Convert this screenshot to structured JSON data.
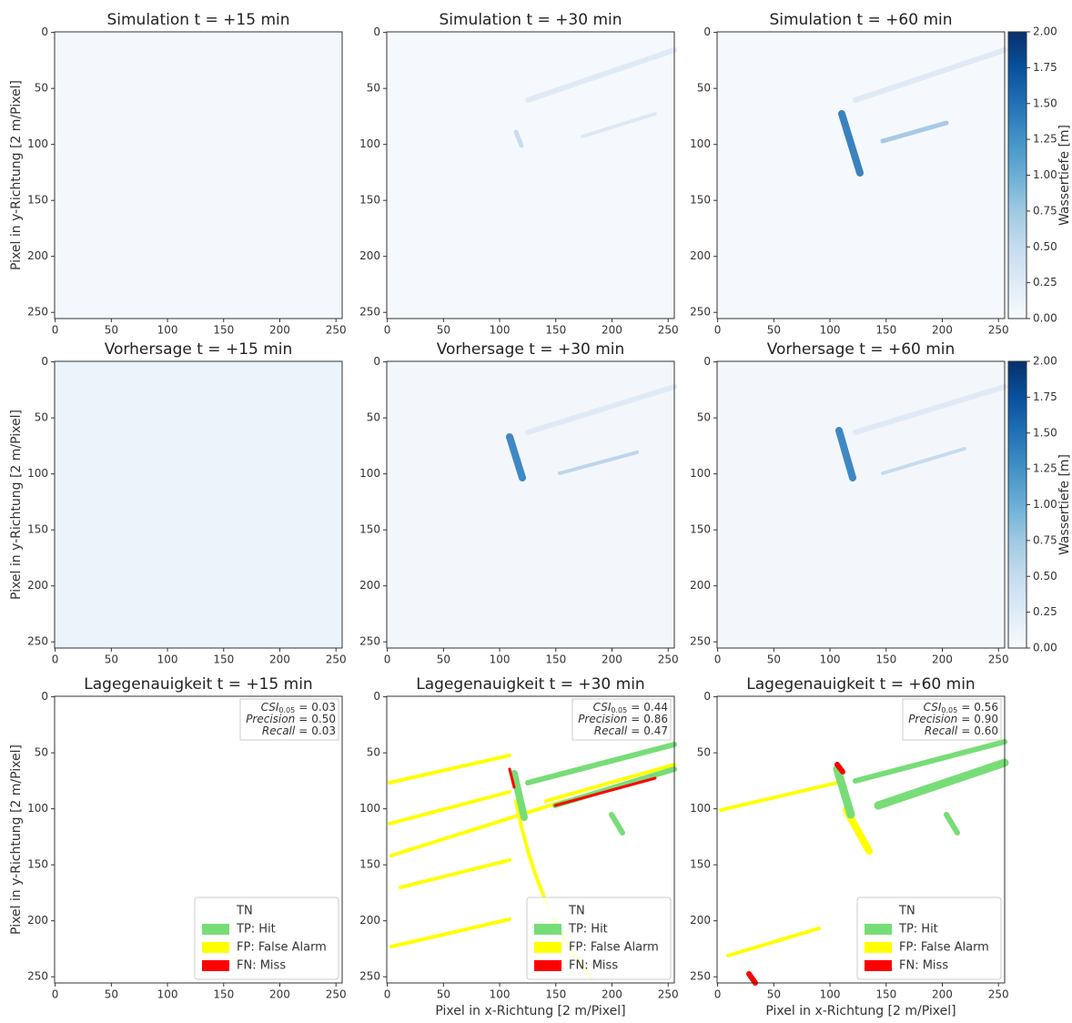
{
  "chart_data": [
    {
      "type": "heatmap",
      "title": "Simulation t = +15 min",
      "ylabel": "Pixel in y-Richtung [2 m/Pixel]",
      "xlim": [
        -0.5,
        255.5
      ],
      "ylim": [
        255.5,
        -0.5
      ],
      "xticks": [
        0,
        50,
        100,
        150,
        200,
        250
      ],
      "yticks": [
        0,
        50,
        100,
        150,
        200,
        250
      ]
    },
    {
      "type": "heatmap",
      "title": "Simulation t = +30 min",
      "xlim": [
        -0.5,
        255.5
      ],
      "ylim": [
        255.5,
        -0.5
      ],
      "xticks": [
        0,
        50,
        100,
        150,
        200,
        250
      ],
      "yticks": [
        0,
        50,
        100,
        150,
        200,
        250
      ]
    },
    {
      "type": "heatmap",
      "title": "Simulation t = +60 min",
      "xlim": [
        -0.5,
        255.5
      ],
      "ylim": [
        255.5,
        -0.5
      ],
      "xticks": [
        0,
        50,
        100,
        150,
        200,
        250
      ],
      "yticks": [
        0,
        50,
        100,
        150,
        200,
        250
      ]
    },
    {
      "type": "heatmap",
      "title": "Vorhersage t = +15 min",
      "ylabel": "Pixel in y-Richtung [2 m/Pixel]",
      "xlim": [
        -0.5,
        255.5
      ],
      "ylim": [
        255.5,
        -0.5
      ],
      "xticks": [
        0,
        50,
        100,
        150,
        200,
        250
      ],
      "yticks": [
        0,
        50,
        100,
        150,
        200,
        250
      ]
    },
    {
      "type": "heatmap",
      "title": "Vorhersage t = +30 min",
      "xlim": [
        -0.5,
        255.5
      ],
      "ylim": [
        255.5,
        -0.5
      ],
      "xticks": [
        0,
        50,
        100,
        150,
        200,
        250
      ],
      "yticks": [
        0,
        50,
        100,
        150,
        200,
        250
      ]
    },
    {
      "type": "heatmap",
      "title": "Vorhersage t = +60 min",
      "xlim": [
        -0.5,
        255.5
      ],
      "ylim": [
        255.5,
        -0.5
      ],
      "xticks": [
        0,
        50,
        100,
        150,
        200,
        250
      ],
      "yticks": [
        0,
        50,
        100,
        150,
        200,
        250
      ]
    },
    {
      "type": "classification",
      "title": "Lagegenauigkeit t = +15 min",
      "ylabel": "Pixel in y-Richtung [2 m/Pixel]",
      "xlim": [
        -0.5,
        255.5
      ],
      "ylim": [
        255.5,
        -0.5
      ],
      "xticks": [
        0,
        50,
        100,
        150,
        200,
        250
      ],
      "yticks": [
        0,
        50,
        100,
        150,
        200,
        250
      ],
      "metric_separator": "=",
      "metrics": [
        {
          "name": "CSI",
          "subscript": "0.05",
          "value": 0.03,
          "value_label": "0.03"
        },
        {
          "name": "Precision",
          "value": 0.5,
          "value_label": "0.50"
        },
        {
          "name": "Recall",
          "value": 0.03,
          "value_label": "0.03"
        }
      ],
      "legend_corner": "lower right",
      "legend": [
        {
          "name": "TN",
          "color": "#ffffff"
        },
        {
          "name": "TP: Hit",
          "color": "#77dd77"
        },
        {
          "name": "FP: False Alarm",
          "color": "#ffff00"
        },
        {
          "name": "FN: Miss",
          "color": "#ff0000"
        }
      ]
    },
    {
      "type": "classification",
      "title": "Lagegenauigkeit t = +30 min",
      "xlabel": "Pixel in x-Richtung [2 m/Pixel]",
      "xlim": [
        -0.5,
        255.5
      ],
      "ylim": [
        255.5,
        -0.5
      ],
      "xticks": [
        0,
        50,
        100,
        150,
        200,
        250
      ],
      "yticks": [
        0,
        50,
        100,
        150,
        200,
        250
      ],
      "metric_separator": "=",
      "metrics": [
        {
          "name": "CSI",
          "subscript": "0.05",
          "value": 0.44,
          "value_label": "0.44"
        },
        {
          "name": "Precision",
          "value": 0.86,
          "value_label": "0.86"
        },
        {
          "name": "Recall",
          "value": 0.47,
          "value_label": "0.47"
        }
      ],
      "legend_corner": "lower right",
      "legend": [
        {
          "name": "TN",
          "color": "#ffffff"
        },
        {
          "name": "TP: Hit",
          "color": "#77dd77"
        },
        {
          "name": "FP: False Alarm",
          "color": "#ffff00"
        },
        {
          "name": "FN: Miss",
          "color": "#ff0000"
        }
      ]
    },
    {
      "type": "classification",
      "title": "Lagegenauigkeit t = +60 min",
      "xlabel": "Pixel in x-Richtung [2 m/Pixel]",
      "xlim": [
        -0.5,
        255.5
      ],
      "ylim": [
        255.5,
        -0.5
      ],
      "xticks": [
        0,
        50,
        100,
        150,
        200,
        250
      ],
      "yticks": [
        0,
        50,
        100,
        150,
        200,
        250
      ],
      "metric_separator": "=",
      "metrics": [
        {
          "name": "CSI",
          "subscript": "0.05",
          "value": 0.56,
          "value_label": "0.56"
        },
        {
          "name": "Precision",
          "value": 0.9,
          "value_label": "0.90"
        },
        {
          "name": "Recall",
          "value": 0.6,
          "value_label": "0.60"
        }
      ],
      "legend_corner": "lower right",
      "legend": [
        {
          "name": "TN",
          "color": "#ffffff"
        },
        {
          "name": "TP: Hit",
          "color": "#77dd77"
        },
        {
          "name": "FP: False Alarm",
          "color": "#ffff00"
        },
        {
          "name": "FN: Miss",
          "color": "#ff0000"
        }
      ]
    },
    {
      "type": "colorbar",
      "ylabel": "Wassertiefe [m]",
      "ylim": [
        0,
        2
      ],
      "colors": [
        "#f7fbff",
        "#deebf7",
        "#c6dbef",
        "#9ecae1",
        "#6baed6",
        "#4292c6",
        "#2171b5",
        "#08519c",
        "#08306b"
      ],
      "yticks": [
        {
          "value": 0,
          "label": "0.00"
        },
        {
          "value": 0.25,
          "label": "0.25"
        },
        {
          "value": 0.5,
          "label": "0.50"
        },
        {
          "value": 0.75,
          "label": "0.75"
        },
        {
          "value": 1,
          "label": "1.00"
        },
        {
          "value": 1.25,
          "label": "1.25"
        },
        {
          "value": 1.5,
          "label": "1.50"
        },
        {
          "value": 1.75,
          "label": "1.75"
        },
        {
          "value": 2,
          "label": "2.00"
        }
      ]
    },
    {
      "type": "colorbar",
      "ylabel": "Wassertiefe [m]",
      "ylim": [
        0,
        2
      ],
      "colors": [
        "#f7fbff",
        "#deebf7",
        "#c6dbef",
        "#9ecae1",
        "#6baed6",
        "#4292c6",
        "#2171b5",
        "#08519c",
        "#08306b"
      ],
      "yticks": [
        {
          "value": 0,
          "label": "0.00"
        },
        {
          "value": 0.25,
          "label": "0.25"
        },
        {
          "value": 0.5,
          "label": "0.50"
        },
        {
          "value": 0.75,
          "label": "0.75"
        },
        {
          "value": 1,
          "label": "1.00"
        },
        {
          "value": 1.25,
          "label": "1.25"
        },
        {
          "value": 1.5,
          "label": "1.50"
        },
        {
          "value": 1.75,
          "label": "1.75"
        },
        {
          "value": 2,
          "label": "2.00"
        }
      ]
    }
  ]
}
